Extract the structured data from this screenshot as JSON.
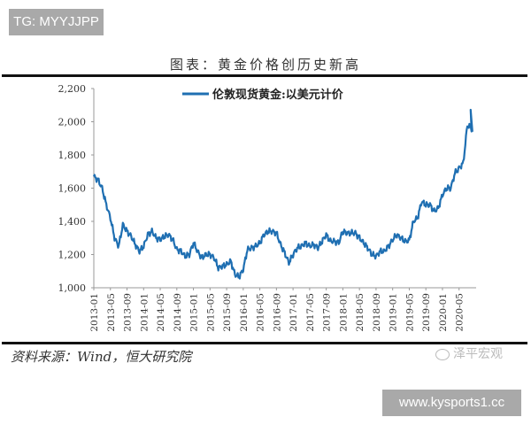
{
  "watermark_top": "TG: MYYJJPP",
  "watermark_bottom": "www.kysports1.cc",
  "figure_title": "图表：黄金价格创历史新高",
  "source_note": "资料来源：Wind，恒大研究院",
  "brand_watermark": "泽平宏观",
  "colors": {
    "line": "#1f6fb2",
    "axis": "#999999",
    "rule": "#111111",
    "badge_bg": "#a9a9a9"
  },
  "chart_data": {
    "type": "line",
    "title": "图表：黄金价格创历史新高",
    "xlabel": "",
    "ylabel": "",
    "ylim": [
      1000,
      2200
    ],
    "yticks": [
      1000,
      1200,
      1400,
      1600,
      1800,
      2000,
      2200
    ],
    "ytick_labels": [
      "1,000",
      "1,200",
      "1,400",
      "1,600",
      "1,800",
      "2,000",
      "2,200"
    ],
    "xtick_labels": [
      "2013-01",
      "2013-05",
      "2013-09",
      "2014-01",
      "2014-05",
      "2014-09",
      "2015-01",
      "2015-05",
      "2015-09",
      "2016-01",
      "2016-05",
      "2016-09",
      "2017-01",
      "2017-05",
      "2017-09",
      "2018-01",
      "2018-05",
      "2018-09",
      "2019-01",
      "2019-05",
      "2019-09",
      "2020-01",
      "2020-05"
    ],
    "grid": false,
    "legend_position": "top-center",
    "series": [
      {
        "name": "伦敦现货黄金:以美元计价",
        "x": [
          "2013-01",
          "2013-02",
          "2013-03",
          "2013-04",
          "2013-05",
          "2013-06",
          "2013-07",
          "2013-08",
          "2013-09",
          "2013-10",
          "2013-11",
          "2013-12",
          "2014-01",
          "2014-02",
          "2014-03",
          "2014-04",
          "2014-05",
          "2014-06",
          "2014-07",
          "2014-08",
          "2014-09",
          "2014-10",
          "2014-11",
          "2014-12",
          "2015-01",
          "2015-02",
          "2015-03",
          "2015-04",
          "2015-05",
          "2015-06",
          "2015-07",
          "2015-08",
          "2015-09",
          "2015-10",
          "2015-11",
          "2015-12",
          "2016-01",
          "2016-02",
          "2016-03",
          "2016-04",
          "2016-05",
          "2016-06",
          "2016-07",
          "2016-08",
          "2016-09",
          "2016-10",
          "2016-11",
          "2016-12",
          "2017-01",
          "2017-02",
          "2017-03",
          "2017-04",
          "2017-05",
          "2017-06",
          "2017-07",
          "2017-08",
          "2017-09",
          "2017-10",
          "2017-11",
          "2017-12",
          "2018-01",
          "2018-02",
          "2018-03",
          "2018-04",
          "2018-05",
          "2018-06",
          "2018-07",
          "2018-08",
          "2018-09",
          "2018-10",
          "2018-11",
          "2018-12",
          "2019-01",
          "2019-02",
          "2019-03",
          "2019-04",
          "2019-05",
          "2019-06",
          "2019-07",
          "2019-08",
          "2019-09",
          "2019-10",
          "2019-11",
          "2019-12",
          "2020-01",
          "2020-02",
          "2020-03",
          "2020-04",
          "2020-05",
          "2020-06",
          "2020-07",
          "2020-08"
        ],
        "values": [
          1670,
          1650,
          1600,
          1500,
          1420,
          1300,
          1250,
          1380,
          1340,
          1310,
          1260,
          1220,
          1250,
          1320,
          1340,
          1300,
          1290,
          1310,
          1320,
          1290,
          1230,
          1220,
          1190,
          1200,
          1270,
          1220,
          1180,
          1200,
          1200,
          1180,
          1120,
          1130,
          1140,
          1160,
          1080,
          1065,
          1110,
          1230,
          1240,
          1250,
          1270,
          1320,
          1340,
          1340,
          1330,
          1260,
          1210,
          1150,
          1200,
          1240,
          1250,
          1270,
          1250,
          1260,
          1240,
          1280,
          1320,
          1280,
          1280,
          1270,
          1340,
          1330,
          1330,
          1330,
          1300,
          1270,
          1240,
          1200,
          1190,
          1220,
          1220,
          1250,
          1290,
          1320,
          1300,
          1280,
          1285,
          1400,
          1420,
          1520,
          1500,
          1500,
          1460,
          1480,
          1560,
          1600,
          1600,
          1690,
          1720,
          1750,
          1980,
          1960
        ]
      }
    ]
  }
}
